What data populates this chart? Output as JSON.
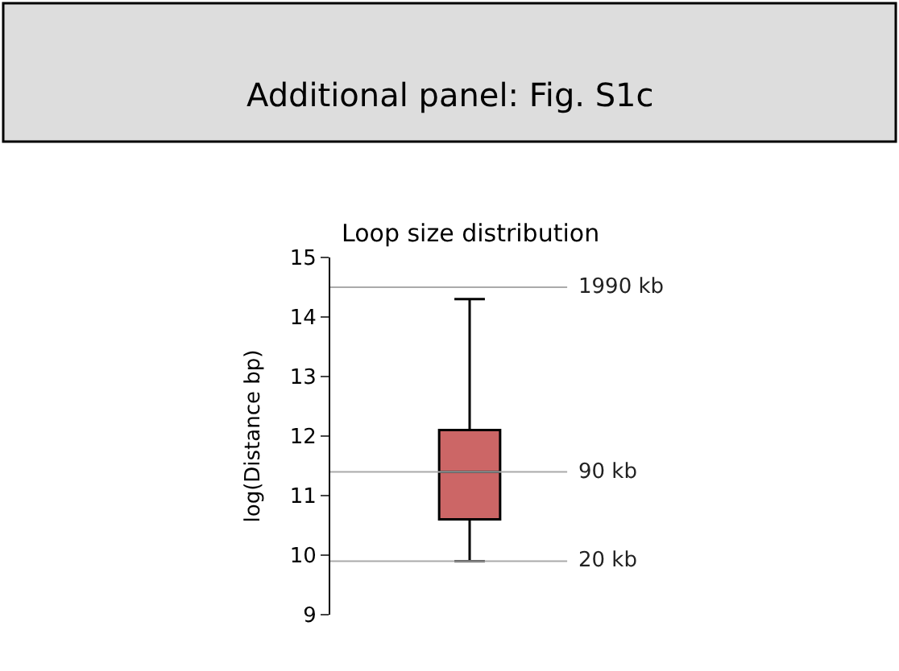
{
  "chart_data": {
    "type": "box",
    "title": "Additional panel: Fig. S1c",
    "subtitle": "Loop size distribution",
    "ylabel": "log(Distance bp)",
    "categories": [
      null
    ],
    "boxes": [
      {
        "low": 9.9,
        "q1": 10.6,
        "median": 11.4,
        "q3": 12.1,
        "high": 14.3
      }
    ],
    "color": "#cc6666",
    "ylim": [
      9,
      15
    ],
    "yticks": [
      9,
      10,
      11,
      12,
      13,
      14,
      15
    ],
    "ref_lines": [
      {
        "axis": "y",
        "value": 14.5,
        "label": "1990 kb",
        "color": "#aaaaaa"
      },
      {
        "axis": "y",
        "value": 11.4,
        "label": "90 kb",
        "color": "#aaaaaa"
      },
      {
        "axis": "y",
        "value": 9.9,
        "label": "20 kb",
        "color": "#aaaaaa"
      }
    ],
    "tick_labels": "y",
    "legend": false
  }
}
